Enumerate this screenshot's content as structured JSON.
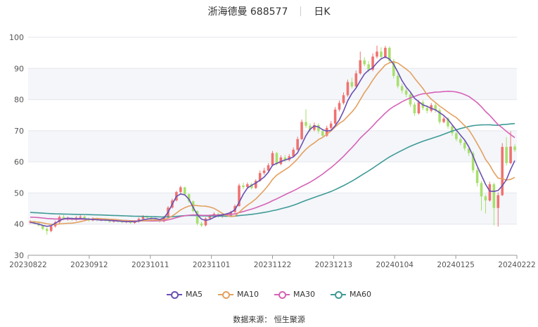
{
  "header": {
    "stock_name": "浙海德曼 688577",
    "period": "日K"
  },
  "source_text": "数据来源：  恒生聚源",
  "chart_data": {
    "type": "candlestick",
    "title": "浙海德曼 688577",
    "ylim": [
      30,
      100
    ],
    "yticks": [
      30,
      40,
      50,
      60,
      70,
      80,
      90,
      100
    ],
    "x_tick_labels": [
      "20230822",
      "20230912",
      "20231011",
      "20231101",
      "20231122",
      "20231213",
      "20240104",
      "20240125",
      "20240222"
    ],
    "grid": true,
    "legend_position": "bottom",
    "colors": {
      "up": "#f0716f",
      "down": "#a7e06c",
      "MA5": "#6a4fb3",
      "MA10": "#e4a05f",
      "MA30": "#d662b5",
      "MA60": "#3f9a96"
    },
    "candles": [
      [
        40.5,
        40.8,
        40.2,
        41.3
      ],
      [
        40.8,
        40.3,
        39.9,
        41.1
      ],
      [
        40.3,
        39.6,
        39.2,
        40.6
      ],
      [
        39.6,
        38.5,
        38.0,
        39.8
      ],
      [
        38.5,
        37.8,
        36.6,
        38.9
      ],
      [
        37.8,
        39.3,
        37.4,
        39.6
      ],
      [
        39.3,
        40.6,
        38.9,
        41.1
      ],
      [
        40.6,
        42.3,
        40.2,
        42.8
      ],
      [
        42.3,
        41.6,
        41.2,
        42.9
      ],
      [
        41.6,
        41.9,
        41.1,
        42.4
      ],
      [
        41.9,
        41.4,
        41.0,
        42.2
      ],
      [
        41.4,
        42.1,
        41.0,
        42.6
      ],
      [
        42.1,
        42.4,
        41.8,
        43.1
      ],
      [
        42.4,
        41.8,
        41.3,
        42.8
      ],
      [
        41.8,
        41.2,
        40.8,
        42.1
      ],
      [
        41.2,
        41.8,
        40.9,
        42.2
      ],
      [
        41.8,
        41.3,
        40.9,
        42.1
      ],
      [
        41.3,
        41.6,
        40.9,
        41.9
      ],
      [
        41.6,
        41.1,
        40.8,
        41.9
      ],
      [
        41.1,
        40.8,
        40.4,
        41.4
      ],
      [
        40.8,
        41.1,
        40.5,
        41.4
      ],
      [
        41.1,
        40.9,
        40.5,
        41.3
      ],
      [
        40.9,
        40.6,
        40.3,
        41.2
      ],
      [
        40.6,
        40.9,
        40.3,
        41.3
      ],
      [
        40.9,
        40.4,
        40.0,
        41.2
      ],
      [
        40.4,
        40.8,
        40.1,
        41.1
      ],
      [
        40.8,
        41.7,
        40.5,
        42.1
      ],
      [
        41.7,
        42.4,
        41.4,
        42.9
      ],
      [
        42.4,
        42.1,
        41.6,
        42.8
      ],
      [
        42.1,
        41.7,
        41.3,
        42.6
      ],
      [
        41.7,
        41.3,
        40.9,
        42.0
      ],
      [
        41.3,
        40.9,
        40.5,
        41.6
      ],
      [
        40.9,
        42.2,
        40.6,
        42.6
      ],
      [
        42.2,
        45.3,
        42.0,
        45.8
      ],
      [
        45.3,
        47.6,
        45.0,
        48.2
      ],
      [
        47.6,
        50.3,
        47.3,
        50.7
      ],
      [
        50.3,
        51.8,
        49.8,
        52.3
      ],
      [
        51.8,
        49.6,
        49.1,
        52.0
      ],
      [
        49.6,
        47.3,
        46.8,
        49.9
      ],
      [
        47.3,
        44.2,
        43.8,
        47.6
      ],
      [
        44.2,
        40.2,
        39.6,
        44.4
      ],
      [
        40.2,
        39.6,
        39.1,
        40.8
      ],
      [
        39.6,
        41.8,
        39.3,
        42.2
      ],
      [
        41.8,
        42.6,
        41.4,
        43.1
      ],
      [
        42.6,
        43.3,
        42.1,
        43.8
      ],
      [
        43.3,
        42.6,
        42.1,
        43.7
      ],
      [
        42.6,
        43.2,
        42.0,
        43.6
      ],
      [
        43.2,
        42.8,
        42.3,
        43.6
      ],
      [
        42.8,
        43.9,
        42.5,
        44.3
      ],
      [
        43.9,
        45.8,
        43.6,
        46.3
      ],
      [
        45.8,
        52.4,
        45.6,
        53.0
      ],
      [
        52.4,
        51.9,
        51.2,
        53.3
      ],
      [
        51.9,
        52.8,
        51.3,
        53.4
      ],
      [
        52.8,
        51.6,
        51.1,
        53.3
      ],
      [
        51.6,
        53.9,
        51.3,
        54.4
      ],
      [
        53.9,
        56.4,
        53.6,
        57.2
      ],
      [
        56.4,
        57.2,
        55.8,
        58.1
      ],
      [
        57.2,
        58.9,
        56.8,
        59.6
      ],
      [
        58.9,
        62.8,
        58.6,
        63.5
      ],
      [
        62.8,
        59.3,
        58.8,
        63.2
      ],
      [
        59.3,
        61.4,
        58.9,
        62.1
      ],
      [
        61.4,
        60.6,
        59.9,
        62.2
      ],
      [
        60.6,
        61.8,
        60.2,
        62.5
      ],
      [
        61.8,
        63.9,
        61.4,
        64.6
      ],
      [
        63.9,
        67.3,
        63.6,
        68.1
      ],
      [
        67.3,
        72.8,
        67.0,
        73.6
      ],
      [
        72.8,
        71.6,
        70.9,
        76.9
      ],
      [
        71.6,
        70.3,
        69.6,
        72.4
      ],
      [
        70.3,
        71.8,
        69.8,
        72.6
      ],
      [
        71.8,
        69.9,
        69.1,
        72.4
      ],
      [
        69.9,
        68.4,
        67.9,
        70.6
      ],
      [
        68.4,
        70.9,
        68.0,
        71.6
      ],
      [
        70.9,
        72.3,
        70.4,
        73.1
      ],
      [
        72.3,
        76.8,
        71.9,
        77.6
      ],
      [
        76.8,
        78.9,
        76.2,
        79.7
      ],
      [
        78.9,
        81.4,
        78.4,
        82.3
      ],
      [
        81.4,
        85.6,
        80.9,
        86.4
      ],
      [
        85.6,
        84.2,
        83.6,
        87.0
      ],
      [
        84.2,
        88.4,
        83.8,
        89.3
      ],
      [
        88.4,
        92.6,
        88.0,
        95.4
      ],
      [
        92.6,
        91.3,
        90.6,
        93.6
      ],
      [
        91.3,
        89.6,
        88.8,
        92.4
      ],
      [
        89.6,
        93.8,
        89.1,
        94.8
      ],
      [
        93.8,
        95.4,
        93.2,
        97.3
      ],
      [
        95.4,
        93.7,
        92.7,
        96.8
      ],
      [
        93.7,
        96.6,
        93.2,
        97.2
      ],
      [
        96.6,
        92.4,
        91.7,
        97.1
      ],
      [
        92.4,
        87.6,
        86.8,
        93.1
      ],
      [
        87.6,
        84.3,
        83.6,
        88.4
      ],
      [
        84.3,
        82.9,
        82.0,
        85.1
      ],
      [
        82.9,
        81.6,
        80.8,
        83.6
      ],
      [
        81.6,
        78.4,
        77.6,
        82.3
      ],
      [
        78.4,
        75.6,
        74.8,
        79.1
      ],
      [
        75.6,
        79.1,
        75.2,
        79.8
      ],
      [
        79.1,
        77.3,
        76.6,
        79.8
      ],
      [
        77.3,
        76.4,
        75.6,
        78.2
      ],
      [
        76.4,
        78.2,
        75.9,
        78.9
      ],
      [
        78.2,
        76.6,
        75.8,
        78.8
      ],
      [
        76.6,
        72.8,
        72.1,
        77.2
      ],
      [
        72.8,
        73.9,
        72.4,
        74.5
      ],
      [
        73.9,
        71.4,
        70.6,
        74.4
      ],
      [
        71.4,
        69.2,
        68.4,
        72.0
      ],
      [
        69.2,
        67.3,
        66.6,
        69.9
      ],
      [
        67.3,
        66.1,
        65.4,
        68.0
      ],
      [
        66.1,
        64.3,
        63.5,
        66.8
      ],
      [
        64.3,
        62.8,
        61.9,
        65.0
      ],
      [
        62.8,
        57.3,
        56.4,
        63.4
      ],
      [
        57.3,
        53.2,
        52.1,
        58.0
      ],
      [
        53.2,
        48.9,
        44.3,
        53.8
      ],
      [
        48.9,
        47.6,
        43.4,
        49.5
      ],
      [
        47.6,
        52.8,
        47.2,
        53.6
      ],
      [
        52.8,
        45.2,
        39.6,
        53.3
      ],
      [
        45.2,
        49.3,
        39.2,
        50.2
      ],
      [
        49.3,
        64.8,
        49.0,
        66.0
      ],
      [
        64.8,
        59.6,
        58.8,
        67.9
      ],
      [
        59.6,
        64.9,
        59.2,
        69.8
      ],
      [
        64.9,
        63.8,
        63.2,
        65.6
      ]
    ],
    "ma_series": {
      "MA5": [
        40.6,
        40.3,
        40.0,
        39.6,
        39.3,
        39.5,
        40.3,
        41.1,
        41.7,
        41.9,
        41.8,
        41.7,
        41.8,
        41.7,
        41.6,
        41.5,
        41.4,
        41.3,
        41.3,
        41.2,
        41.1,
        41.0,
        40.9,
        40.8,
        40.8,
        40.8,
        41.0,
        41.4,
        41.6,
        41.8,
        41.8,
        41.5,
        42.0,
        43.8,
        46.4,
        48.9,
        49.7,
        49.4,
        48.0,
        45.4,
        43.0,
        41.6,
        41.2,
        41.5,
        42.2,
        42.7,
        43.0,
        43.3,
        43.7,
        44.6,
        47.0,
        49.6,
        51.6,
        52.5,
        53.2,
        54.1,
        55.1,
        56.7,
        58.9,
        59.5,
        60.1,
        60.6,
        61.0,
        61.6,
        62.9,
        65.6,
        68.4,
        70.5,
        71.5,
        71.2,
        70.3,
        69.9,
        70.1,
        71.6,
        73.5,
        76.3,
        79.6,
        82.0,
        83.7,
        86.0,
        88.2,
        89.4,
        90.2,
        91.8,
        93.1,
        93.7,
        93.0,
        91.3,
        88.8,
        86.1,
        84.0,
        82.4,
        80.4,
        79.3,
        78.3,
        77.8,
        77.2,
        76.7,
        75.8,
        74.9,
        73.6,
        71.9,
        70.2,
        68.6,
        67.0,
        64.8,
        61.9,
        58.6,
        55.7,
        52.8,
        50.6,
        50.5,
        50.8,
        52.3,
        54.3,
        57.6,
        60.4
      ]
    }
  }
}
